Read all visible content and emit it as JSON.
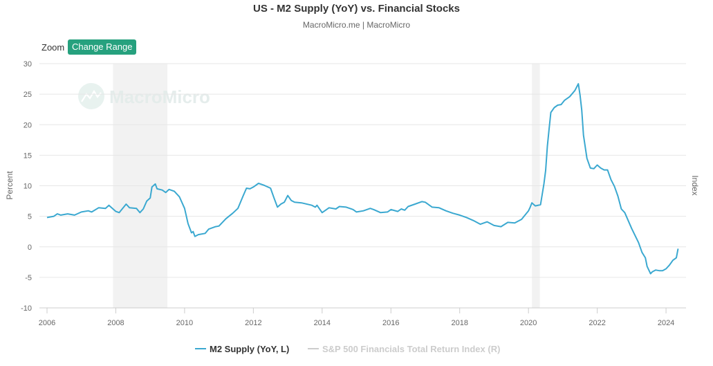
{
  "header": {
    "title": "US - M2 Supply (YoY) vs. Financial Stocks",
    "subtitle": "MacroMicro.me | MacroMicro"
  },
  "controls": {
    "zoom_label": "Zoom",
    "change_range_label": "Change Range"
  },
  "watermark": {
    "text": "MacroMicro"
  },
  "colors": {
    "series": "#3aa8d0",
    "inactive_series": "#cccccc",
    "recession": "#f2f2f2",
    "button": "#26a17e"
  },
  "chart_data": {
    "type": "line",
    "title": "US - M2 Supply (YoY) vs. Financial Stocks",
    "ylabel": "Percent",
    "y2label": "Index",
    "ylim": [
      -10,
      30
    ],
    "yticks": [
      -10,
      -5,
      0,
      5,
      10,
      15,
      20,
      25,
      30
    ],
    "xlim": [
      2006.0,
      2024.35
    ],
    "xticks": [
      "2006",
      "2008",
      "2010",
      "2012",
      "2014",
      "2016",
      "2018",
      "2020",
      "2022",
      "2024"
    ],
    "grid": true,
    "recessions": [
      [
        2007.92,
        2009.5
      ],
      [
        2020.1,
        2020.33
      ]
    ],
    "series": [
      {
        "name": "M2 Supply (YoY, L)",
        "visible": true,
        "points": [
          [
            2006.0,
            4.8
          ],
          [
            2006.2,
            5.0
          ],
          [
            2006.3,
            5.4
          ],
          [
            2006.4,
            5.2
          ],
          [
            2006.6,
            5.4
          ],
          [
            2006.8,
            5.2
          ],
          [
            2007.0,
            5.7
          ],
          [
            2007.2,
            5.9
          ],
          [
            2007.3,
            5.7
          ],
          [
            2007.5,
            6.4
          ],
          [
            2007.7,
            6.3
          ],
          [
            2007.8,
            6.8
          ],
          [
            2008.0,
            5.8
          ],
          [
            2008.1,
            5.6
          ],
          [
            2008.3,
            7.0
          ],
          [
            2008.4,
            6.4
          ],
          [
            2008.6,
            6.3
          ],
          [
            2008.7,
            5.6
          ],
          [
            2008.8,
            6.2
          ],
          [
            2008.9,
            7.5
          ],
          [
            2009.0,
            8.0
          ],
          [
            2009.05,
            9.8
          ],
          [
            2009.15,
            10.3
          ],
          [
            2009.2,
            9.5
          ],
          [
            2009.35,
            9.3
          ],
          [
            2009.45,
            8.9
          ],
          [
            2009.55,
            9.4
          ],
          [
            2009.7,
            9.1
          ],
          [
            2009.85,
            8.2
          ],
          [
            2010.0,
            6.3
          ],
          [
            2010.1,
            3.8
          ],
          [
            2010.2,
            2.3
          ],
          [
            2010.25,
            2.5
          ],
          [
            2010.3,
            1.7
          ],
          [
            2010.4,
            2.0
          ],
          [
            2010.6,
            2.2
          ],
          [
            2010.7,
            2.9
          ],
          [
            2010.9,
            3.3
          ],
          [
            2011.0,
            3.4
          ],
          [
            2011.1,
            4.0
          ],
          [
            2011.2,
            4.6
          ],
          [
            2011.4,
            5.5
          ],
          [
            2011.55,
            6.3
          ],
          [
            2011.7,
            8.3
          ],
          [
            2011.8,
            9.6
          ],
          [
            2011.9,
            9.5
          ],
          [
            2012.0,
            9.8
          ],
          [
            2012.15,
            10.4
          ],
          [
            2012.3,
            10.1
          ],
          [
            2012.5,
            9.6
          ],
          [
            2012.6,
            8.0
          ],
          [
            2012.7,
            6.5
          ],
          [
            2012.8,
            7.0
          ],
          [
            2012.9,
            7.3
          ],
          [
            2013.0,
            8.4
          ],
          [
            2013.1,
            7.6
          ],
          [
            2013.2,
            7.3
          ],
          [
            2013.4,
            7.2
          ],
          [
            2013.7,
            6.8
          ],
          [
            2013.8,
            6.5
          ],
          [
            2013.85,
            6.8
          ],
          [
            2014.0,
            5.6
          ],
          [
            2014.2,
            6.4
          ],
          [
            2014.4,
            6.2
          ],
          [
            2014.5,
            6.6
          ],
          [
            2014.7,
            6.5
          ],
          [
            2014.9,
            6.1
          ],
          [
            2015.0,
            5.7
          ],
          [
            2015.2,
            5.9
          ],
          [
            2015.4,
            6.3
          ],
          [
            2015.5,
            6.1
          ],
          [
            2015.7,
            5.6
          ],
          [
            2015.9,
            5.7
          ],
          [
            2016.0,
            6.1
          ],
          [
            2016.2,
            5.8
          ],
          [
            2016.3,
            6.2
          ],
          [
            2016.4,
            6.0
          ],
          [
            2016.5,
            6.6
          ],
          [
            2016.7,
            7.0
          ],
          [
            2016.9,
            7.4
          ],
          [
            2017.0,
            7.3
          ],
          [
            2017.2,
            6.5
          ],
          [
            2017.4,
            6.4
          ],
          [
            2017.6,
            5.9
          ],
          [
            2017.8,
            5.5
          ],
          [
            2018.0,
            5.2
          ],
          [
            2018.2,
            4.8
          ],
          [
            2018.4,
            4.3
          ],
          [
            2018.6,
            3.7
          ],
          [
            2018.8,
            4.1
          ],
          [
            2019.0,
            3.5
          ],
          [
            2019.2,
            3.3
          ],
          [
            2019.4,
            4.0
          ],
          [
            2019.6,
            3.9
          ],
          [
            2019.8,
            4.5
          ],
          [
            2020.0,
            5.9
          ],
          [
            2020.05,
            6.5
          ],
          [
            2020.1,
            7.2
          ],
          [
            2020.2,
            6.7
          ],
          [
            2020.35,
            6.9
          ],
          [
            2020.45,
            10.3
          ],
          [
            2020.5,
            12.5
          ],
          [
            2020.55,
            16.5
          ],
          [
            2020.6,
            19.3
          ],
          [
            2020.65,
            22.0
          ],
          [
            2020.75,
            22.8
          ],
          [
            2020.85,
            23.2
          ],
          [
            2020.95,
            23.3
          ],
          [
            2021.05,
            24.0
          ],
          [
            2021.2,
            24.6
          ],
          [
            2021.35,
            25.6
          ],
          [
            2021.45,
            26.7
          ],
          [
            2021.5,
            24.8
          ],
          [
            2021.55,
            22.4
          ],
          [
            2021.6,
            18.3
          ],
          [
            2021.7,
            14.5
          ],
          [
            2021.8,
            12.9
          ],
          [
            2021.9,
            12.8
          ],
          [
            2022.0,
            13.4
          ],
          [
            2022.1,
            12.9
          ],
          [
            2022.2,
            12.6
          ],
          [
            2022.3,
            12.6
          ],
          [
            2022.4,
            11.0
          ],
          [
            2022.5,
            9.9
          ],
          [
            2022.6,
            8.3
          ],
          [
            2022.7,
            6.2
          ],
          [
            2022.8,
            5.6
          ],
          [
            2022.9,
            4.3
          ],
          [
            2023.0,
            3.0
          ],
          [
            2023.2,
            0.7
          ],
          [
            2023.3,
            -0.9
          ],
          [
            2023.4,
            -1.8
          ],
          [
            2023.45,
            -3.2
          ],
          [
            2023.55,
            -4.4
          ],
          [
            2023.6,
            -4.1
          ],
          [
            2023.7,
            -3.8
          ],
          [
            2023.8,
            -3.9
          ],
          [
            2023.9,
            -3.9
          ],
          [
            2024.0,
            -3.6
          ],
          [
            2024.1,
            -3.0
          ],
          [
            2024.2,
            -2.2
          ],
          [
            2024.3,
            -1.8
          ],
          [
            2024.35,
            -0.3
          ]
        ]
      },
      {
        "name": "S&P 500 Financials Total Return Index (R)",
        "visible": false,
        "points": []
      }
    ]
  }
}
